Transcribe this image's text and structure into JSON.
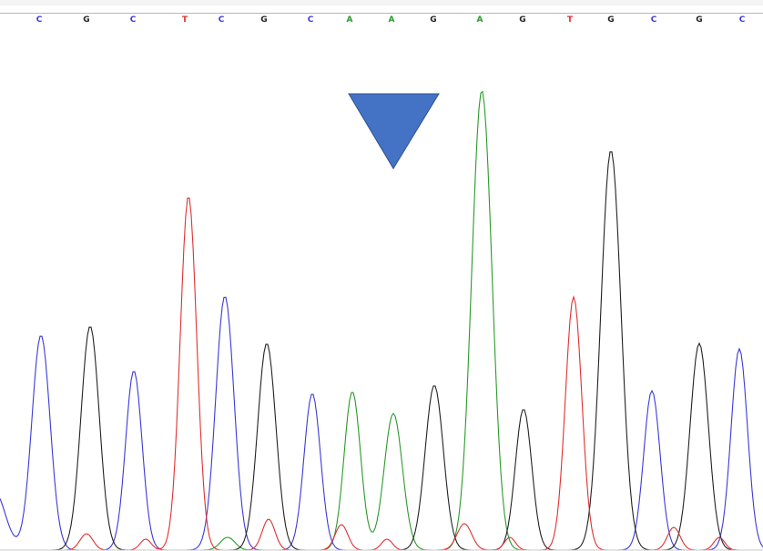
{
  "chromatogram": {
    "base_calls": [
      "C",
      "G",
      "C",
      "T",
      "C",
      "G",
      "C",
      "A",
      "A",
      "G",
      "A",
      "G",
      "T",
      "G",
      "C",
      "G",
      "C"
    ],
    "base_colors": {
      "A": "#2a9a2a",
      "C": "#3a3ad8",
      "G": "#222222",
      "T": "#e03030"
    },
    "marker": {
      "shape": "inverted-triangle",
      "color": "#4472c4",
      "outline": "#2f528f"
    }
  }
}
